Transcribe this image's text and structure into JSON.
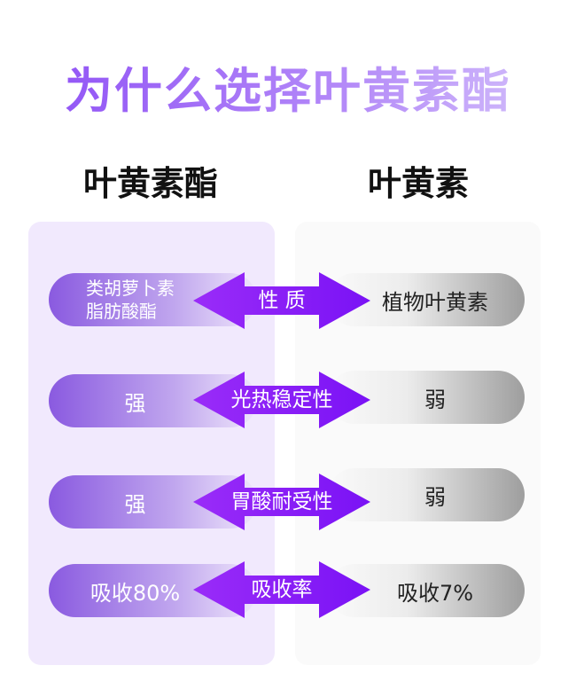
{
  "title": "为什么选择叶黄素酯",
  "columns": {
    "left": "叶黄素酯",
    "right": "叶黄素"
  },
  "rows": [
    {
      "left_line1": "类胡萝卜素",
      "left_line2": "脂肪酸酯",
      "label": "性 质",
      "right": "植物叶黄素"
    },
    {
      "left": "强",
      "label": "光热稳定性",
      "right": "弱"
    },
    {
      "left": "强",
      "label": "胃酸耐受性",
      "right": "弱"
    },
    {
      "left": "吸收80%",
      "label": "吸收率",
      "right": "吸收7%"
    }
  ],
  "colors": {
    "accent": "#7a12f5",
    "title_gradient_start": "#8c4cf5",
    "left_panel": "#f1e9fd",
    "right_panel": "#fafafa"
  }
}
